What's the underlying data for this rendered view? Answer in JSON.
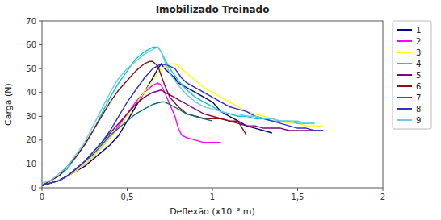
{
  "chart_data": {
    "type": "line",
    "title": "Imobilizado Treinado",
    "x_label": "Deflexão (x10⁻³ m)",
    "y_label": "Carga (N)",
    "xlim": [
      0,
      2
    ],
    "ylim": [
      0,
      70
    ],
    "xticks": [
      0,
      {
        "value": 0.5,
        "label": "0,5"
      },
      1,
      {
        "value": 1.5,
        "label": "1,5"
      },
      2
    ],
    "yticks": [
      0,
      10,
      20,
      30,
      40,
      50,
      60,
      70
    ],
    "grid": false,
    "legend": "right",
    "series": [
      {
        "name": "1",
        "color": "#00008B",
        "x": [
          0,
          0.05,
          0.1,
          0.15,
          0.2,
          0.25,
          0.3,
          0.35,
          0.4,
          0.45,
          0.5,
          0.55,
          0.6,
          0.65,
          0.68,
          0.7,
          0.72,
          0.75,
          0.78,
          0.8,
          0.85,
          0.9,
          0.95,
          1.0,
          1.05,
          1.1,
          1.15,
          1.2,
          1.25,
          1.3,
          1.35
        ],
        "values": [
          1,
          2,
          3,
          5,
          7,
          9,
          12,
          15,
          18,
          22,
          28,
          34,
          40,
          46,
          50,
          52,
          50,
          48,
          46,
          44,
          42,
          40,
          38,
          36,
          32,
          30,
          28,
          26,
          25,
          24,
          23
        ]
      },
      {
        "name": "2",
        "color": "#FF00FF",
        "x": [
          0,
          0.05,
          0.1,
          0.15,
          0.2,
          0.25,
          0.3,
          0.35,
          0.4,
          0.45,
          0.5,
          0.55,
          0.6,
          0.65,
          0.68,
          0.7,
          0.72,
          0.75,
          0.78,
          0.8,
          0.82,
          0.85,
          0.9,
          0.95,
          1.0,
          1.05
        ],
        "values": [
          1,
          2,
          3,
          5,
          7,
          10,
          13,
          17,
          21,
          26,
          31,
          36,
          40,
          43,
          44,
          43,
          40,
          35,
          30,
          25,
          22,
          21,
          20,
          19,
          19,
          19
        ]
      },
      {
        "name": "3",
        "color": "#FFFF00",
        "x": [
          0,
          0.05,
          0.1,
          0.15,
          0.2,
          0.25,
          0.3,
          0.35,
          0.4,
          0.45,
          0.5,
          0.55,
          0.6,
          0.65,
          0.7,
          0.75,
          0.78,
          0.8,
          0.85,
          0.9,
          0.95,
          1.0,
          1.05,
          1.1,
          1.15,
          1.2,
          1.25,
          1.3,
          1.35,
          1.4,
          1.45,
          1.5,
          1.55,
          1.6,
          1.65
        ],
        "values": [
          1,
          2,
          3,
          5,
          7,
          10,
          13,
          17,
          21,
          25,
          30,
          35,
          40,
          45,
          50,
          52,
          52,
          51,
          48,
          45,
          42,
          40,
          38,
          36,
          34,
          32,
          31,
          30,
          29,
          28,
          27,
          27,
          26,
          26,
          26
        ]
      },
      {
        "name": "4",
        "color": "#00CCCC",
        "x": [
          0,
          0.05,
          0.1,
          0.15,
          0.2,
          0.25,
          0.3,
          0.35,
          0.4,
          0.45,
          0.5,
          0.55,
          0.6,
          0.65,
          0.68,
          0.7,
          0.72,
          0.75,
          0.8,
          0.85,
          0.9,
          0.95,
          1.0,
          1.05,
          1.1,
          1.15,
          1.2,
          1.25,
          1.3,
          1.35,
          1.4,
          1.45,
          1.5,
          1.55,
          1.6
        ],
        "values": [
          1,
          3,
          5,
          8,
          13,
          18,
          24,
          31,
          38,
          44,
          49,
          54,
          57,
          59,
          59,
          57,
          54,
          50,
          45,
          41,
          38,
          36,
          34,
          32,
          31,
          30,
          30,
          29,
          29,
          28,
          28,
          28,
          27,
          27,
          27
        ]
      },
      {
        "name": "5",
        "color": "#800080",
        "x": [
          0,
          0.05,
          0.1,
          0.15,
          0.2,
          0.25,
          0.3,
          0.35,
          0.4,
          0.45,
          0.5,
          0.55,
          0.6,
          0.65,
          0.7,
          0.72,
          0.75,
          0.8,
          0.85,
          0.9,
          0.95,
          1.0,
          1.05,
          1.1,
          1.15,
          1.2,
          1.25,
          1.3,
          1.35,
          1.4,
          1.45,
          1.5,
          1.55,
          1.6,
          1.65
        ],
        "values": [
          1,
          2,
          3,
          5,
          8,
          11,
          15,
          19,
          23,
          27,
          31,
          35,
          38,
          40,
          41,
          40,
          39,
          37,
          35,
          33,
          31,
          30,
          29,
          28,
          27,
          26,
          26,
          25,
          25,
          25,
          24,
          24,
          24,
          24,
          24
        ]
      },
      {
        "name": "6",
        "color": "#8B1010",
        "x": [
          0,
          0.05,
          0.1,
          0.15,
          0.2,
          0.25,
          0.3,
          0.35,
          0.4,
          0.45,
          0.5,
          0.55,
          0.6,
          0.63,
          0.65,
          0.68,
          0.7,
          0.72,
          0.75,
          0.8,
          0.85,
          0.9,
          0.95,
          1.0,
          1.05,
          1.1,
          1.15,
          1.2
        ],
        "values": [
          1,
          3,
          5,
          9,
          13,
          18,
          24,
          30,
          36,
          41,
          45,
          49,
          52,
          53,
          53,
          51,
          47,
          43,
          38,
          34,
          31,
          30,
          29,
          29,
          29,
          28,
          28,
          22
        ]
      },
      {
        "name": "7",
        "color": "#007070",
        "x": [
          0,
          0.05,
          0.1,
          0.15,
          0.2,
          0.25,
          0.3,
          0.35,
          0.4,
          0.45,
          0.5,
          0.55,
          0.6,
          0.65,
          0.7,
          0.72,
          0.75,
          0.8,
          0.85,
          0.9,
          0.95,
          1.0
        ],
        "values": [
          1,
          2,
          3,
          5,
          8,
          11,
          14,
          18,
          22,
          25,
          28,
          31,
          33,
          35,
          36,
          36,
          35,
          33,
          31,
          30,
          29,
          28
        ]
      },
      {
        "name": "8",
        "color": "#3030CC",
        "x": [
          0,
          0.05,
          0.1,
          0.15,
          0.2,
          0.25,
          0.3,
          0.35,
          0.4,
          0.45,
          0.5,
          0.55,
          0.6,
          0.65,
          0.7,
          0.75,
          0.78,
          0.8,
          0.82,
          0.85,
          0.9,
          0.95,
          1.0,
          1.05,
          1.1,
          1.15,
          1.2,
          1.25,
          1.3,
          1.35,
          1.4,
          1.45,
          1.5,
          1.55,
          1.6,
          1.65
        ],
        "values": [
          1,
          2,
          3,
          5,
          8,
          11,
          15,
          19,
          24,
          30,
          36,
          41,
          46,
          50,
          52,
          51,
          50,
          48,
          46,
          44,
          42,
          40,
          38,
          36,
          34,
          33,
          32,
          30,
          29,
          28,
          27,
          26,
          25,
          25,
          24,
          24
        ]
      },
      {
        "name": "9",
        "color": "#70C8E8",
        "x": [
          0,
          0.05,
          0.1,
          0.15,
          0.2,
          0.25,
          0.3,
          0.35,
          0.4,
          0.45,
          0.5,
          0.55,
          0.6,
          0.65,
          0.68,
          0.7,
          0.72,
          0.75,
          0.8,
          0.85,
          0.9,
          0.95,
          1.0,
          1.05,
          1.1,
          1.15,
          1.2,
          1.25,
          1.3,
          1.35,
          1.4,
          1.45,
          1.5,
          1.55,
          1.6
        ],
        "values": [
          2,
          3,
          6,
          9,
          14,
          19,
          26,
          33,
          40,
          46,
          50,
          53,
          56,
          58,
          59,
          57,
          53,
          48,
          43,
          39,
          36,
          34,
          33,
          32,
          31,
          31,
          30,
          30,
          29,
          29,
          28,
          28,
          28,
          27,
          27
        ]
      }
    ]
  }
}
